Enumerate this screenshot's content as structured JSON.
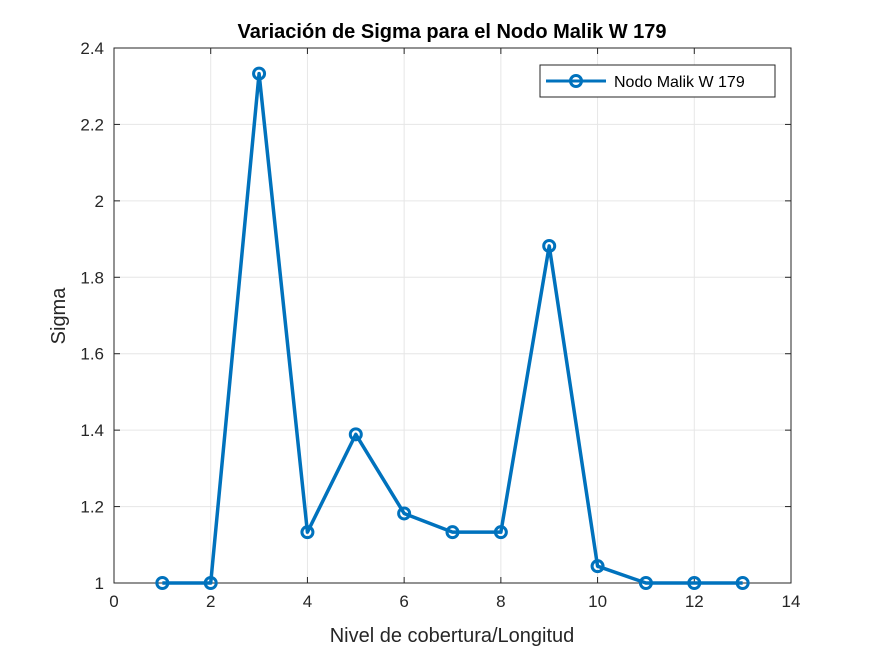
{
  "chart_data": {
    "type": "line",
    "title": "Variación de Sigma para el Nodo Malik W 179",
    "xlabel": "Nivel de cobertura/Longitud",
    "ylabel": "Sigma",
    "xlim": [
      0,
      14
    ],
    "ylim": [
      1,
      2.4
    ],
    "xticks": [
      "0",
      "2",
      "4",
      "6",
      "8",
      "10",
      "12",
      "14"
    ],
    "yticks": [
      "1",
      "1.2",
      "1.4",
      "1.6",
      "1.8",
      "2",
      "2.2",
      "2.4"
    ],
    "grid": true,
    "legend_position": "top-right",
    "series": [
      {
        "name": "Nodo Malik W 179",
        "color": "#0072BD",
        "marker": "circle",
        "x": [
          1,
          2,
          3,
          4,
          5,
          6,
          7,
          8,
          9,
          10,
          11,
          12,
          13
        ],
        "values": [
          1.0,
          1.0,
          2.333,
          1.133,
          1.389,
          1.182,
          1.133,
          1.133,
          1.882,
          1.044,
          1.0,
          1.0,
          1.0
        ]
      }
    ]
  }
}
